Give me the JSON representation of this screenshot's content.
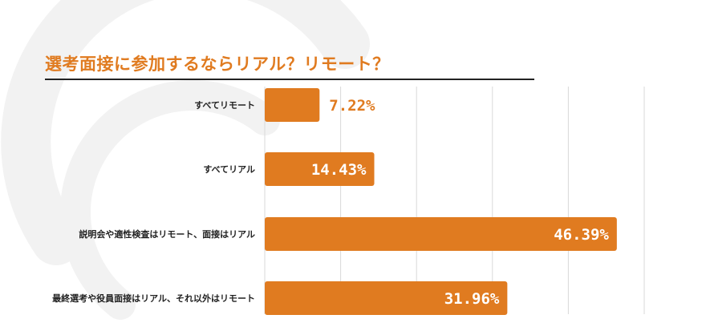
{
  "title": "選考面接に参加するならリアル？リモート？",
  "colors": {
    "bar": "#e07b20",
    "title": "#e07b20",
    "label_outside": "#e07b20",
    "label_inside": "#ffffff",
    "grid": "#d9d9d9",
    "watermark": "#f2f2f2"
  },
  "chart_data": {
    "type": "bar",
    "orientation": "horizontal",
    "title": "選考面接に参加するならリアル？リモート？",
    "categories": [
      "すべてリモート",
      "すべてリアル",
      "説明会や適性検査はリモート、面接はリアル",
      "最終選考や役員面接はリアル、それ以外はリモート"
    ],
    "values": [
      7.22,
      14.43,
      46.39,
      31.96
    ],
    "data_labels": [
      "7.22%",
      "14.43%",
      "46.39%",
      "31.96%"
    ],
    "xlim": [
      0,
      50
    ],
    "xlabel": "",
    "ylabel": "",
    "grid": true,
    "legend": "none"
  }
}
